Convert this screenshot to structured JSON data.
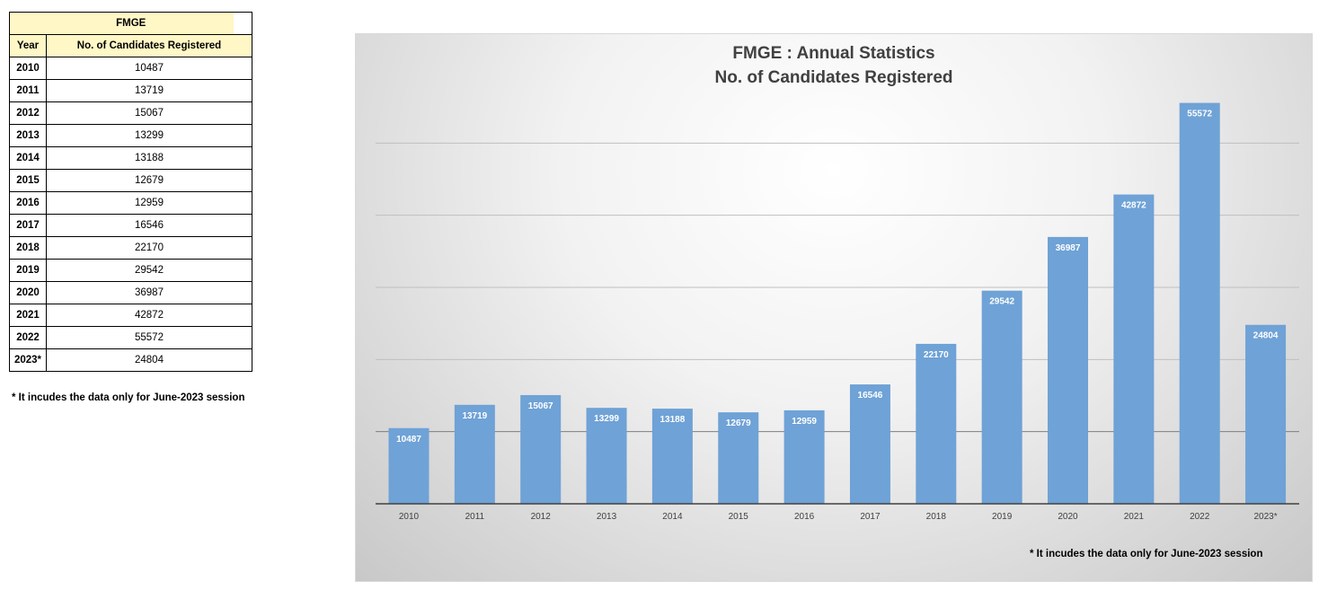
{
  "table": {
    "title": "FMGE",
    "year_header": "Year",
    "value_header": "No. of Candidates Registered",
    "rows": [
      {
        "year": "2010",
        "value": "10487"
      },
      {
        "year": "2011",
        "value": "13719"
      },
      {
        "year": "2012",
        "value": "15067"
      },
      {
        "year": "2013",
        "value": "13299"
      },
      {
        "year": "2014",
        "value": "13188"
      },
      {
        "year": "2015",
        "value": "12679"
      },
      {
        "year": "2016",
        "value": "12959"
      },
      {
        "year": "2017",
        "value": "16546"
      },
      {
        "year": "2018",
        "value": "22170"
      },
      {
        "year": "2019",
        "value": "29542"
      },
      {
        "year": "2020",
        "value": "36987"
      },
      {
        "year": "2021",
        "value": "42872"
      },
      {
        "year": "2022",
        "value": "55572"
      },
      {
        "year": "2023*",
        "value": "24804"
      }
    ],
    "note": "* It incudes the data only for June-2023 session"
  },
  "chart_data": {
    "type": "bar",
    "title": "FMGE : Annual Statistics",
    "subtitle": "No. of Candidates Registered",
    "categories": [
      "2010",
      "2011",
      "2012",
      "2013",
      "2014",
      "2015",
      "2016",
      "2017",
      "2018",
      "2019",
      "2020",
      "2021",
      "2022",
      "2023*"
    ],
    "values": [
      10487,
      13719,
      15067,
      13299,
      13188,
      12679,
      12959,
      16546,
      22170,
      29542,
      36987,
      42872,
      55572,
      24804
    ],
    "ylim": [
      0,
      60000
    ],
    "gridlines": [
      10000,
      20000,
      30000,
      40000,
      50000
    ],
    "grid": true,
    "data_labels": true,
    "bar_color": "#6fa2d6",
    "note": "* It incudes the data only for June-2023 session"
  }
}
